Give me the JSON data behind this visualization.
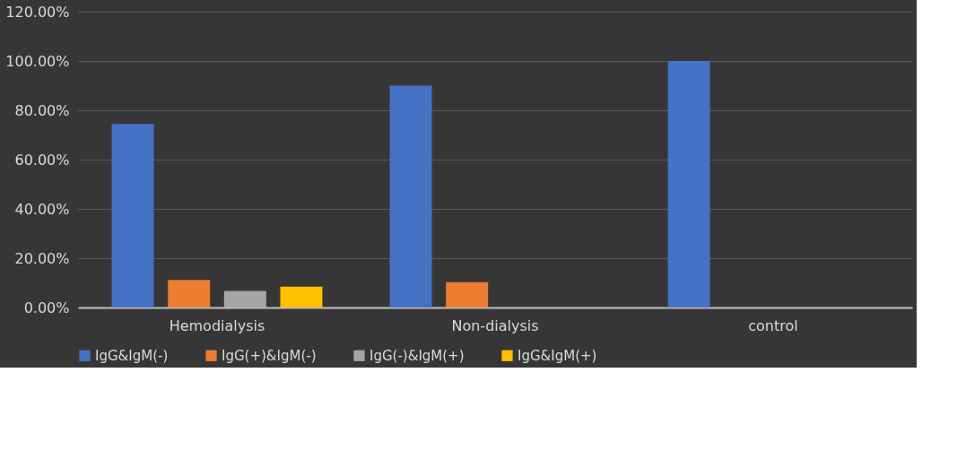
{
  "chart_data": {
    "type": "bar",
    "categories": [
      "Hemodialysis",
      "Non-dialysis",
      "control"
    ],
    "series": [
      {
        "name": "IgG&IgM(-)",
        "color": "#4472c4",
        "values": [
          74.5,
          90,
          100
        ]
      },
      {
        "name": "IgG(+)&IgM(-)",
        "color": "#ed7d31",
        "values": [
          11.2,
          10.3,
          0
        ]
      },
      {
        "name": "IgG(-)&IgM(+)",
        "color": "#a5a5a5",
        "values": [
          6.7,
          0,
          0
        ]
      },
      {
        "name": "IgG&IgM(+)",
        "color": "#ffc000",
        "values": [
          8.5,
          0,
          0
        ]
      }
    ],
    "ylim": [
      0,
      120
    ],
    "yticks": [
      {
        "value": 0,
        "label": "0.00%"
      },
      {
        "value": 20,
        "label": "20.00%"
      },
      {
        "value": 40,
        "label": "40.00%"
      },
      {
        "value": 60,
        "label": "60.00%"
      },
      {
        "value": 80,
        "label": "80.00%"
      },
      {
        "value": 100,
        "label": "100.00%"
      },
      {
        "value": 120,
        "label": "120.00%"
      }
    ],
    "grid": "y",
    "legend": "bottom"
  }
}
